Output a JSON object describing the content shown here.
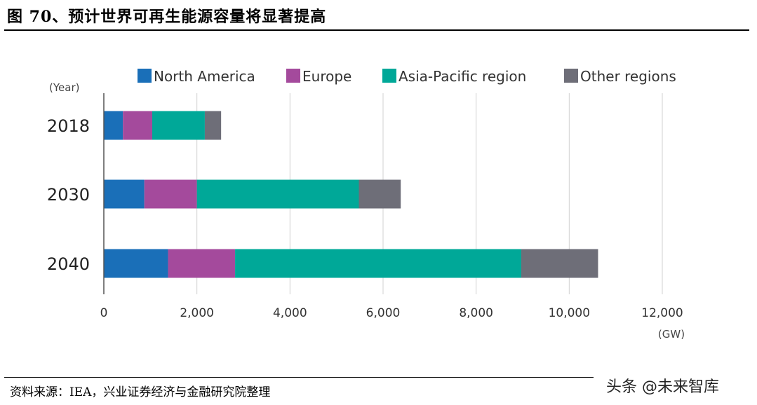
{
  "title": "图 70、预计世界可再生能源容量将显著提高",
  "source": "资料来源：IEA，兴业证券经济与金融研究院整理",
  "watermark": "头条 @未来智库",
  "chart_data": {
    "type": "bar",
    "orientation": "horizontal",
    "stacked": true,
    "categories": [
      "2018",
      "2030",
      "2040"
    ],
    "category_axis_label": "(Year)",
    "value_axis_unit": "(GW)",
    "xlim": [
      0,
      12000
    ],
    "xticks": [
      0,
      2000,
      4000,
      6000,
      8000,
      10000,
      12000
    ],
    "xtick_labels": [
      "0",
      "2,000",
      "4,000",
      "6,000",
      "8,000",
      "10,000",
      "12,000"
    ],
    "grid": true,
    "legend_position": "top",
    "series": [
      {
        "name": "North America",
        "color": "#1a6fb8",
        "values": [
          410,
          870,
          1380
        ]
      },
      {
        "name": "Europe",
        "color": "#a44a9c",
        "values": [
          630,
          1130,
          1440
        ]
      },
      {
        "name": "Asia-Pacific region",
        "color": "#00a898",
        "values": [
          1130,
          3480,
          6150
        ]
      },
      {
        "name": "Other regions",
        "color": "#6e6e78",
        "values": [
          350,
          900,
          1650
        ]
      }
    ]
  }
}
